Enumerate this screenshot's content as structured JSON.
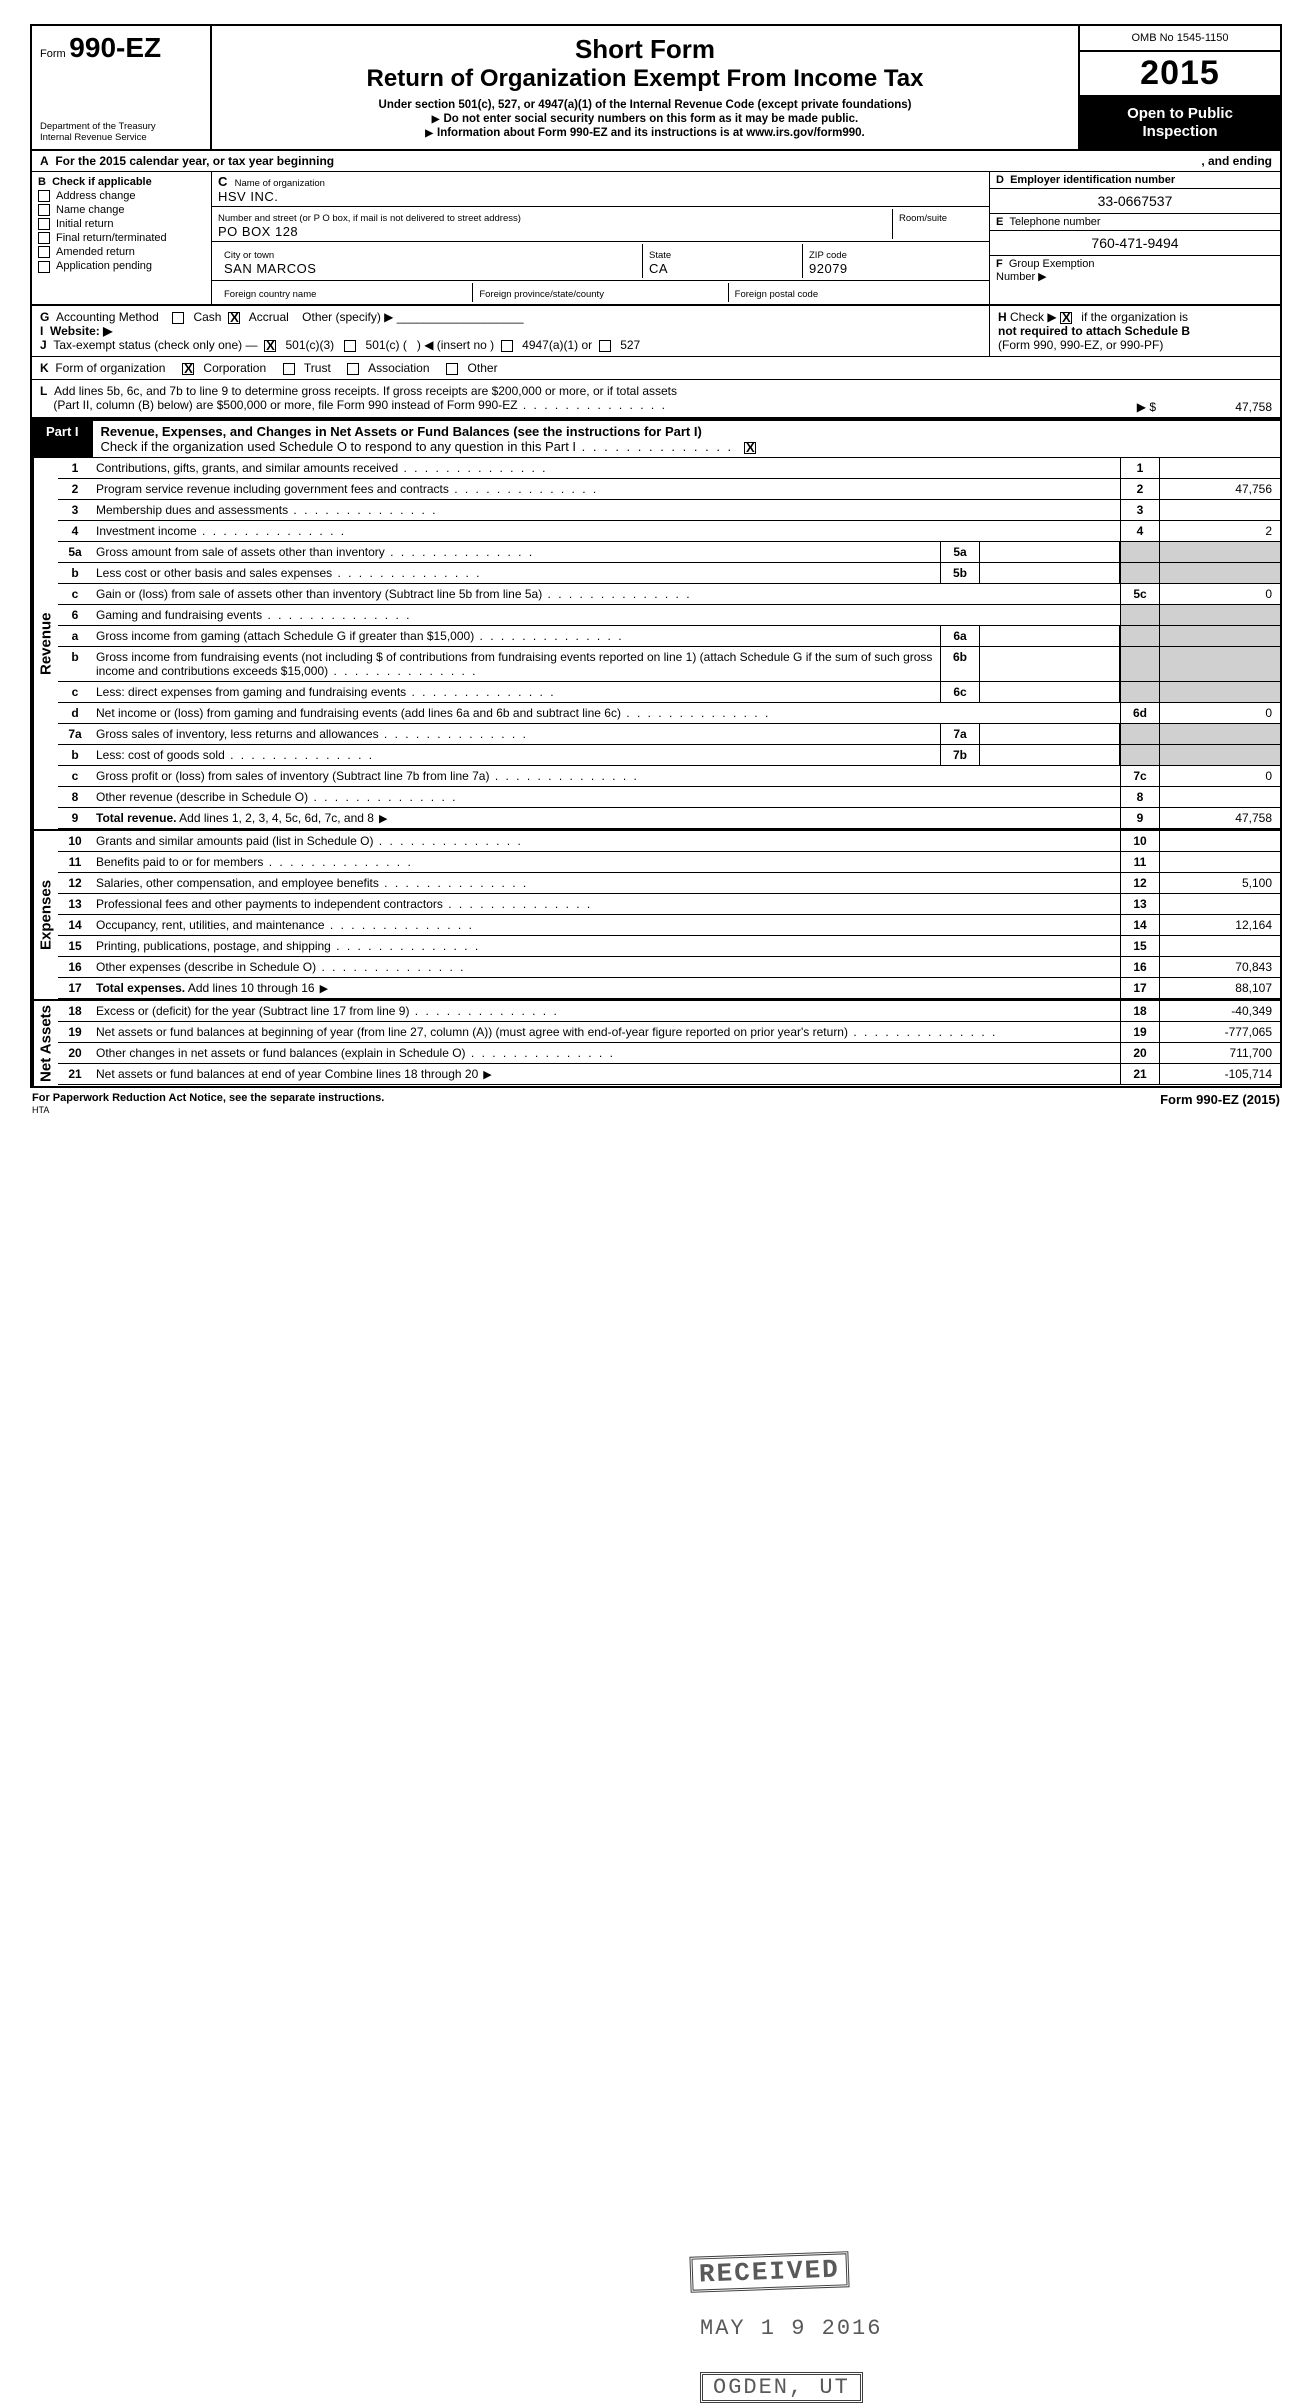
{
  "header": {
    "form_prefix": "Form",
    "form_number": "990-EZ",
    "dept1": "Department of the Treasury",
    "dept2": "Internal Revenue Service",
    "title1": "Short Form",
    "title2": "Return of Organization Exempt From Income Tax",
    "sub1": "Under section 501(c), 527, or 4947(a)(1) of the Internal Revenue Code (except private foundations)",
    "sub2": "Do not enter social security numbers on this form as it may be made public.",
    "sub3": "Information about Form 990-EZ and its instructions is at www.irs.gov/form990.",
    "omb": "OMB No 1545-1150",
    "year": "2015",
    "open1": "Open to Public",
    "open2": "Inspection"
  },
  "rowA": {
    "left": "For the 2015 calendar year, or tax year beginning",
    "right": ", and ending"
  },
  "colB": {
    "title": "Check if applicable",
    "opts": [
      "Address change",
      "Name change",
      "Initial return",
      "Final return/terminated",
      "Amended return",
      "Application pending"
    ]
  },
  "colC": {
    "name_label": "Name of organization",
    "name": "HSV INC.",
    "addr_label": "Number and street (or P O  box, if mail is not delivered to street address)",
    "room_label": "Room/suite",
    "addr": "PO BOX 128",
    "city_label": "City or town",
    "state_label": "State",
    "zip_label": "ZIP code",
    "city": "SAN MARCOS",
    "state": "CA",
    "zip": "92079",
    "fc_label": "Foreign country name",
    "fp_label": "Foreign province/state/county",
    "fz_label": "Foreign postal code"
  },
  "colD": {
    "ein_label": "Employer identification number",
    "ein": "33-0667537",
    "tel_label": "Telephone number",
    "tel": "760-471-9494",
    "grp_label": "Group Exemption",
    "grp2": "Number ▶"
  },
  "rowG": {
    "left_label": "Accounting Method",
    "cash": "Cash",
    "accrual": "Accrual",
    "other": "Other (specify) ▶",
    "website": "Website: ▶",
    "tax_status": "Tax-exempt status (check only one) —",
    "c3": "501(c)(3)",
    "c": "501(c) (",
    "insert": ") ◀ (insert no )",
    "a1": "4947(a)(1) or",
    "s527": "527",
    "h_label": "Check ▶",
    "h_text": "if the organization is",
    "h_text2": "not required to attach Schedule B",
    "h_text3": "(Form 990, 990-EZ, or 990-PF)"
  },
  "rowK": {
    "label": "Form of organization",
    "corp": "Corporation",
    "trust": "Trust",
    "assoc": "Association",
    "other": "Other"
  },
  "rowL": {
    "text1": "Add lines 5b, 6c, and 7b to line 9 to determine gross receipts. If gross receipts are $200,000 or more, or if total assets",
    "text2": "(Part II, column (B) below) are $500,000 or more, file Form 990 instead of Form 990-EZ",
    "arrow": "▶ $",
    "value": "47,758"
  },
  "part1": {
    "tag": "Part I",
    "title": "Revenue, Expenses, and Changes in Net Assets or Fund Balances (see the instructions for Part I)",
    "check": "Check if the organization used Schedule O to respond to any question in this Part I",
    "checkbox": "X"
  },
  "sections": {
    "revenue": "Revenue",
    "expenses": "Expenses",
    "net": "Net Assets"
  },
  "lines": [
    {
      "n": "1",
      "d": "Contributions, gifts, grants, and similar amounts received",
      "rn": "1",
      "rv": ""
    },
    {
      "n": "2",
      "d": "Program service revenue including government fees and contracts",
      "rn": "2",
      "rv": "47,756"
    },
    {
      "n": "3",
      "d": "Membership dues and assessments",
      "rn": "3",
      "rv": ""
    },
    {
      "n": "4",
      "d": "Investment income",
      "rn": "4",
      "rv": "2"
    },
    {
      "n": "5a",
      "d": "Gross amount from sale of assets other than inventory",
      "mn": "5a",
      "mv": ""
    },
    {
      "n": "b",
      "d": "Less  cost or other basis and sales expenses",
      "mn": "5b",
      "mv": ""
    },
    {
      "n": "c",
      "d": "Gain or (loss) from sale of assets other than inventory (Subtract line 5b from line 5a)",
      "rn": "5c",
      "rv": "0"
    },
    {
      "n": "6",
      "d": "Gaming and fundraising events"
    },
    {
      "n": "a",
      "d": "Gross income from gaming (attach Schedule G if greater than $15,000)",
      "mn": "6a",
      "mv": ""
    },
    {
      "n": "b",
      "d": "Gross income from fundraising events (not including   $                of contributions from fundraising events reported on line 1) (attach Schedule G if the sum of such gross income and contributions exceeds $15,000)",
      "mn": "6b",
      "mv": ""
    },
    {
      "n": "c",
      "d": "Less: direct expenses from gaming and fundraising events",
      "mn": "6c",
      "mv": ""
    },
    {
      "n": "d",
      "d": "Net income or (loss) from gaming and fundraising events (add lines 6a and 6b and subtract line 6c)",
      "rn": "6d",
      "rv": "0"
    },
    {
      "n": "7a",
      "d": "Gross sales of inventory, less returns and allowances",
      "mn": "7a",
      "mv": ""
    },
    {
      "n": "b",
      "d": "Less: cost of goods sold",
      "mn": "7b",
      "mv": ""
    },
    {
      "n": "c",
      "d": "Gross profit or (loss) from sales of inventory (Subtract line 7b from line 7a)",
      "rn": "7c",
      "rv": "0"
    },
    {
      "n": "8",
      "d": "Other revenue (describe in Schedule O)",
      "rn": "8",
      "rv": ""
    },
    {
      "n": "9",
      "d": "Total revenue. Add lines 1, 2, 3, 4, 5c, 6d, 7c, and 8",
      "rn": "9",
      "rv": "47,758",
      "bold": true,
      "arrow": true
    }
  ],
  "exp": [
    {
      "n": "10",
      "d": "Grants and similar amounts paid (list in Schedule O)",
      "rn": "10",
      "rv": ""
    },
    {
      "n": "11",
      "d": "Benefits paid to or for members",
      "rn": "11",
      "rv": ""
    },
    {
      "n": "12",
      "d": "Salaries, other compensation, and employee benefits",
      "rn": "12",
      "rv": "5,100"
    },
    {
      "n": "13",
      "d": "Professional fees and other payments to independent contractors",
      "rn": "13",
      "rv": ""
    },
    {
      "n": "14",
      "d": "Occupancy, rent, utilities, and maintenance",
      "rn": "14",
      "rv": "12,164"
    },
    {
      "n": "15",
      "d": "Printing, publications, postage, and shipping",
      "rn": "15",
      "rv": ""
    },
    {
      "n": "16",
      "d": "Other expenses (describe in Schedule O)",
      "rn": "16",
      "rv": "70,843"
    },
    {
      "n": "17",
      "d": "Total expenses. Add lines 10 through 16",
      "rn": "17",
      "rv": "88,107",
      "bold": true,
      "arrow": true
    }
  ],
  "net": [
    {
      "n": "18",
      "d": "Excess or (deficit) for the year (Subtract line 17 from line 9)",
      "rn": "18",
      "rv": "-40,349"
    },
    {
      "n": "19",
      "d": "Net assets or fund balances at beginning of year (from line 27, column (A)) (must agree with end-of-year figure reported on prior year's return)",
      "rn": "19",
      "rv": "-777,065"
    },
    {
      "n": "20",
      "d": "Other changes in net assets or fund balances (explain in Schedule O)",
      "rn": "20",
      "rv": "711,700"
    },
    {
      "n": "21",
      "d": "Net assets or fund balances at end of year  Combine lines 18 through 20",
      "rn": "21",
      "rv": "-105,714",
      "arrow": true
    }
  ],
  "footer": {
    "left": "For Paperwork Reduction Act Notice, see the separate instructions.",
    "hta": "HTA",
    "right": "Form 990-EZ (2015)"
  },
  "stamps": {
    "received": "RECEIVED",
    "date": "MAY 1 9 2016",
    "ogden": "OGDEN, UT"
  },
  "letters": {
    "A": "A",
    "B": "B",
    "C": "C",
    "D": "D",
    "E": "E",
    "F": "F",
    "G": "G",
    "H": "H",
    "I": "I",
    "J": "J",
    "K": "K",
    "L": "L"
  }
}
